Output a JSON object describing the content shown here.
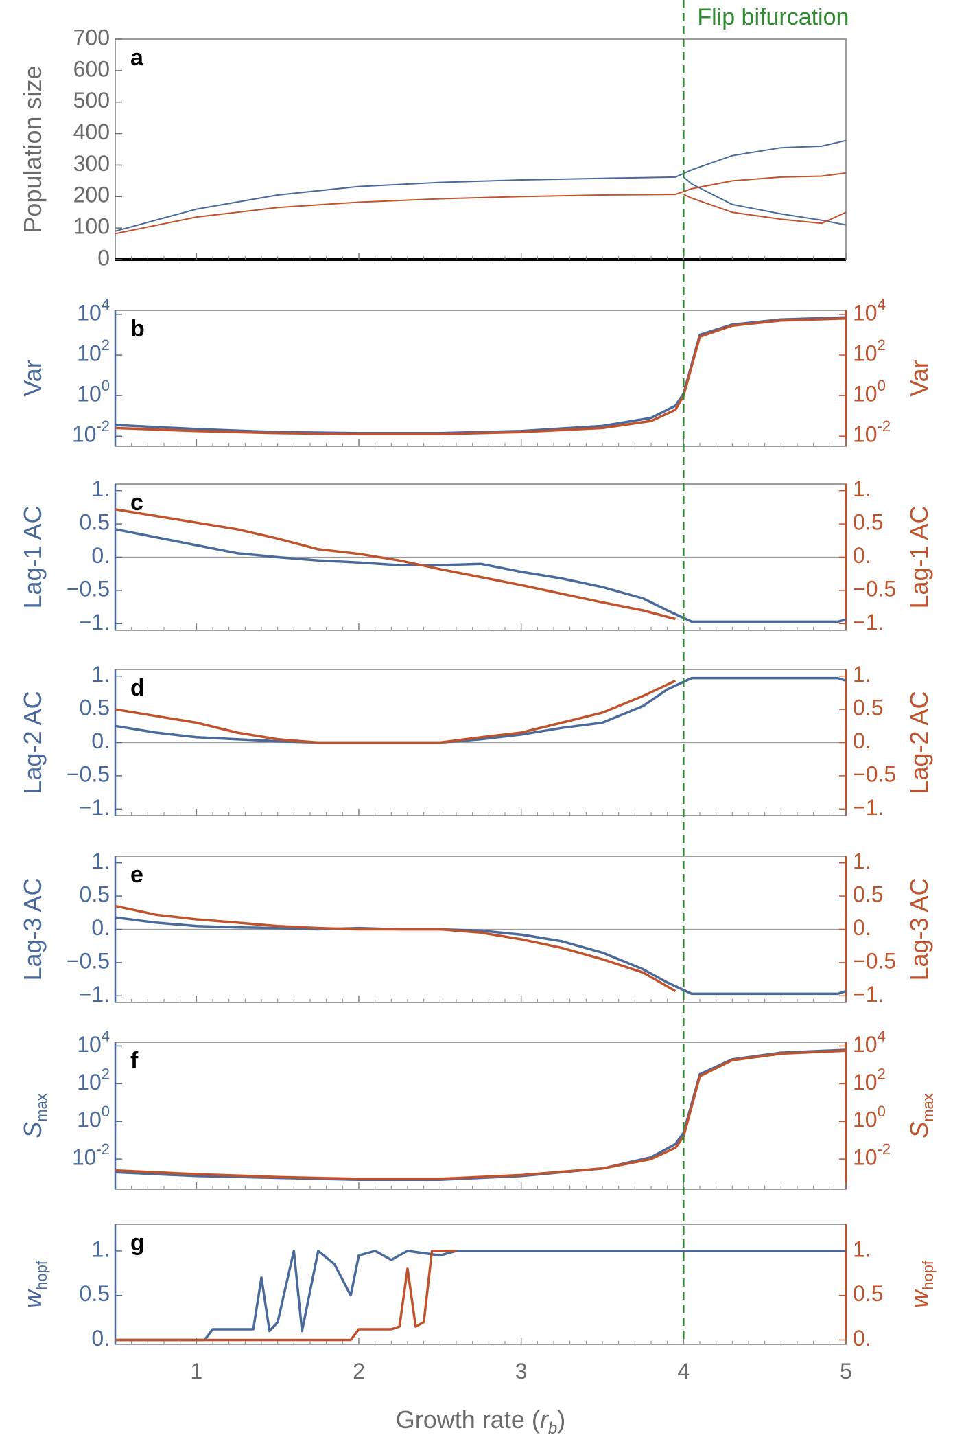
{
  "figure": {
    "annotation": "Flip bifurcation",
    "xlabel_main": "Growth rate (",
    "xlabel_sym": "r",
    "xlabel_sub": "b",
    "xlabel_close": ")",
    "x_ticks": [
      "1",
      "2",
      "3",
      "4",
      "5"
    ],
    "bifurcation_x": 4
  },
  "colors": {
    "blue": "#4a6a9c",
    "orange": "#c0532c",
    "green": "#2e8b2e",
    "axis": "#7f7f7f",
    "label": "#6b6b6b"
  },
  "chart_data": [
    {
      "letter": "a",
      "type": "line",
      "ylabel": "Population size",
      "ylim": [
        0,
        700
      ],
      "y_ticks": [
        "0",
        "100",
        "200",
        "300",
        "400",
        "500",
        "600",
        "700"
      ],
      "series": [
        {
          "color": "blue",
          "x": [
            0.5,
            1,
            1.5,
            2,
            2.5,
            3,
            3.5,
            3.95,
            4.05,
            4.3,
            4.6,
            4.85,
            5.0
          ],
          "y": [
            90,
            160,
            205,
            232,
            245,
            253,
            258,
            262,
            285,
            330,
            355,
            360,
            378
          ]
        },
        {
          "color": "blue",
          "x": [
            4.0,
            4.05,
            4.3,
            4.6,
            4.85,
            5.0
          ],
          "y": [
            262,
            240,
            175,
            145,
            125,
            110
          ]
        },
        {
          "color": "orange",
          "x": [
            0.5,
            1,
            1.5,
            2,
            2.5,
            3,
            3.5,
            3.95,
            4.05,
            4.3,
            4.6,
            4.85,
            5.0
          ],
          "y": [
            82,
            135,
            165,
            182,
            193,
            200,
            205,
            207,
            225,
            250,
            262,
            265,
            275
          ]
        },
        {
          "color": "orange",
          "x": [
            4.0,
            4.05,
            4.3,
            4.6,
            4.85,
            5.0
          ],
          "y": [
            207,
            195,
            150,
            128,
            115,
            150
          ]
        }
      ]
    },
    {
      "letter": "b",
      "type": "line",
      "ylabel": "Var",
      "ylabel_right": "Var",
      "log": true,
      "ylim": [
        -2.5,
        4.2
      ],
      "y_ticks": [
        "10^-2",
        "10^0",
        "10^2",
        "10^4"
      ],
      "series": [
        {
          "color": "blue",
          "x": [
            0.5,
            1,
            1.5,
            2,
            2.5,
            3,
            3.5,
            3.8,
            3.95,
            4.0,
            4.1,
            4.3,
            4.6,
            5.0
          ],
          "y": [
            -1.45,
            -1.65,
            -1.8,
            -1.85,
            -1.85,
            -1.75,
            -1.5,
            -1.1,
            -0.5,
            0.1,
            3.0,
            3.5,
            3.75,
            3.85
          ]
        },
        {
          "color": "orange",
          "x": [
            0.5,
            1,
            1.5,
            2,
            2.5,
            3,
            3.5,
            3.8,
            3.95,
            4.0,
            4.1,
            4.3,
            4.6,
            5.0
          ],
          "y": [
            -1.6,
            -1.75,
            -1.85,
            -1.9,
            -1.9,
            -1.8,
            -1.6,
            -1.25,
            -0.7,
            0.0,
            2.9,
            3.45,
            3.7,
            3.8
          ]
        }
      ]
    },
    {
      "letter": "c",
      "type": "line",
      "ylabel": "Lag-1 AC",
      "ylabel_right": "Lag-1 AC",
      "ylim": [
        -1.1,
        1.1
      ],
      "zero_line": true,
      "y_ticks": [
        "−1.",
        "−0.5",
        "0.",
        "0.5",
        "1."
      ],
      "series": [
        {
          "color": "blue",
          "x": [
            0.5,
            0.75,
            1,
            1.25,
            1.5,
            1.75,
            2,
            2.25,
            2.5,
            2.75,
            3,
            3.25,
            3.5,
            3.75,
            3.9,
            4.05,
            4.5,
            4.95,
            5.0
          ],
          "y": [
            0.42,
            0.3,
            0.18,
            0.06,
            0.0,
            -0.05,
            -0.08,
            -0.12,
            -0.12,
            -0.1,
            -0.22,
            -0.32,
            -0.45,
            -0.62,
            -0.8,
            -0.97,
            -0.97,
            -0.97,
            -0.94
          ]
        },
        {
          "color": "orange",
          "x": [
            0.5,
            0.75,
            1,
            1.25,
            1.5,
            1.75,
            2,
            2.25,
            2.5,
            2.75,
            3,
            3.25,
            3.5,
            3.75,
            3.95
          ],
          "y": [
            0.72,
            0.62,
            0.52,
            0.42,
            0.28,
            0.12,
            0.05,
            -0.05,
            -0.18,
            -0.3,
            -0.42,
            -0.55,
            -0.68,
            -0.8,
            -0.93
          ]
        }
      ]
    },
    {
      "letter": "d",
      "type": "line",
      "ylabel": "Lag-2 AC",
      "ylabel_right": "Lag-2 AC",
      "ylim": [
        -1.1,
        1.1
      ],
      "zero_line": true,
      "y_ticks": [
        "−1.",
        "−0.5",
        "0.",
        "0.5",
        "1."
      ],
      "series": [
        {
          "color": "blue",
          "x": [
            0.5,
            0.75,
            1,
            1.25,
            1.5,
            1.75,
            2,
            2.25,
            2.5,
            2.75,
            3,
            3.25,
            3.5,
            3.75,
            3.9,
            4.05,
            4.5,
            4.95,
            5.0
          ],
          "y": [
            0.25,
            0.15,
            0.08,
            0.05,
            0.02,
            0.0,
            0.0,
            0.0,
            0.0,
            0.05,
            0.12,
            0.22,
            0.3,
            0.55,
            0.8,
            0.97,
            0.97,
            0.97,
            0.93
          ]
        },
        {
          "color": "orange",
          "x": [
            0.5,
            0.75,
            1,
            1.25,
            1.5,
            1.75,
            2,
            2.25,
            2.5,
            2.75,
            3,
            3.25,
            3.5,
            3.75,
            3.95
          ],
          "y": [
            0.5,
            0.4,
            0.3,
            0.15,
            0.05,
            0.0,
            0.0,
            0.0,
            0.0,
            0.08,
            0.15,
            0.3,
            0.45,
            0.7,
            0.93
          ]
        }
      ]
    },
    {
      "letter": "e",
      "type": "line",
      "ylabel": "Lag-3 AC",
      "ylabel_right": "Lag-3 AC",
      "ylim": [
        -1.1,
        1.1
      ],
      "zero_line": true,
      "y_ticks": [
        "−1.",
        "−0.5",
        "0.",
        "0.5",
        "1."
      ],
      "series": [
        {
          "color": "blue",
          "x": [
            0.5,
            0.75,
            1,
            1.25,
            1.5,
            1.75,
            2,
            2.25,
            2.5,
            2.75,
            3,
            3.25,
            3.5,
            3.75,
            3.9,
            4.05,
            4.5,
            4.95,
            5.0
          ],
          "y": [
            0.18,
            0.1,
            0.05,
            0.03,
            0.02,
            0.0,
            0.02,
            0.0,
            0.0,
            -0.02,
            -0.08,
            -0.18,
            -0.35,
            -0.6,
            -0.8,
            -0.97,
            -0.97,
            -0.97,
            -0.93
          ]
        },
        {
          "color": "orange",
          "x": [
            0.5,
            0.75,
            1,
            1.25,
            1.5,
            1.75,
            2,
            2.25,
            2.5,
            2.75,
            3,
            3.25,
            3.5,
            3.75,
            3.95
          ],
          "y": [
            0.35,
            0.22,
            0.15,
            0.1,
            0.05,
            0.02,
            0.0,
            0.0,
            0.0,
            -0.05,
            -0.15,
            -0.28,
            -0.45,
            -0.65,
            -0.93
          ]
        }
      ]
    },
    {
      "letter": "f",
      "type": "line",
      "ylabel": "S",
      "ylabel_sub": "max",
      "ylabel_right": "S",
      "ylabel_right_sub": "max",
      "log": true,
      "ylim": [
        -3.6,
        4.2
      ],
      "y_ticks": [
        "10^-2",
        "10^0",
        "10^2",
        "10^4"
      ],
      "series": [
        {
          "color": "blue",
          "x": [
            0.5,
            1,
            1.5,
            2,
            2.5,
            3,
            3.5,
            3.8,
            3.95,
            4.0,
            4.1,
            4.3,
            4.6,
            5.0
          ],
          "y": [
            -2.7,
            -2.9,
            -3.0,
            -3.1,
            -3.1,
            -2.9,
            -2.5,
            -1.9,
            -1.2,
            -0.6,
            2.5,
            3.3,
            3.65,
            3.8
          ]
        },
        {
          "color": "orange",
          "x": [
            0.5,
            1,
            1.5,
            2,
            2.5,
            3,
            3.5,
            3.8,
            3.95,
            4.0,
            4.1,
            4.3,
            4.6,
            5.0
          ],
          "y": [
            -2.6,
            -2.8,
            -2.95,
            -3.05,
            -3.05,
            -2.85,
            -2.5,
            -2.0,
            -1.4,
            -0.8,
            2.4,
            3.25,
            3.6,
            3.75
          ]
        }
      ]
    },
    {
      "letter": "g",
      "type": "line",
      "ylabel": "w",
      "ylabel_sub": "hopf",
      "ylabel_right": "w",
      "ylabel_right_sub": "hopf",
      "ylim": [
        -0.05,
        1.3
      ],
      "y_ticks": [
        "0.",
        "0.5",
        "1."
      ],
      "series": [
        {
          "color": "blue",
          "x": [
            0.5,
            1.05,
            1.1,
            1.35,
            1.4,
            1.45,
            1.5,
            1.6,
            1.65,
            1.75,
            1.85,
            1.95,
            2.0,
            2.1,
            2.2,
            2.3,
            2.5,
            2.6,
            5.0
          ],
          "y": [
            0.0,
            0.0,
            0.12,
            0.12,
            0.7,
            0.1,
            0.2,
            1.0,
            0.1,
            1.0,
            0.85,
            0.5,
            0.95,
            1.0,
            0.9,
            1.0,
            0.95,
            1.0,
            1.0
          ]
        },
        {
          "color": "orange",
          "x": [
            0.5,
            1.95,
            2.0,
            2.2,
            2.25,
            2.3,
            2.35,
            2.4,
            2.45,
            2.6
          ],
          "y": [
            0.0,
            0.0,
            0.12,
            0.12,
            0.15,
            0.8,
            0.15,
            0.2,
            1.0,
            1.0
          ]
        }
      ]
    }
  ]
}
